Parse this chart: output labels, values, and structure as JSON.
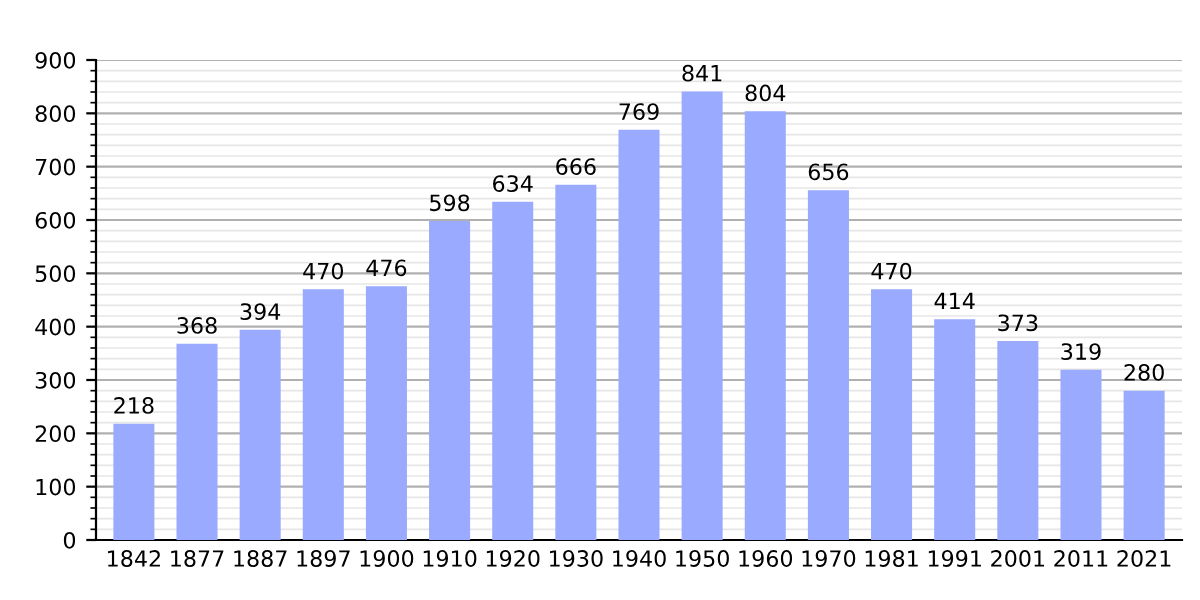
{
  "chart_data": {
    "type": "bar",
    "categories": [
      "1842",
      "1877",
      "1887",
      "1897",
      "1900",
      "1910",
      "1920",
      "1930",
      "1940",
      "1950",
      "1960",
      "1970",
      "1981",
      "1991",
      "2001",
      "2011",
      "2021"
    ],
    "values": [
      218,
      368,
      394,
      470,
      476,
      598,
      634,
      666,
      769,
      841,
      804,
      656,
      470,
      414,
      373,
      319,
      280
    ],
    "color": "#99aaff",
    "ylim": [
      0,
      900
    ],
    "yticks": [
      0,
      100,
      200,
      300,
      400,
      500,
      600,
      700,
      800,
      900
    ],
    "grid": "y",
    "data_labels": true
  }
}
